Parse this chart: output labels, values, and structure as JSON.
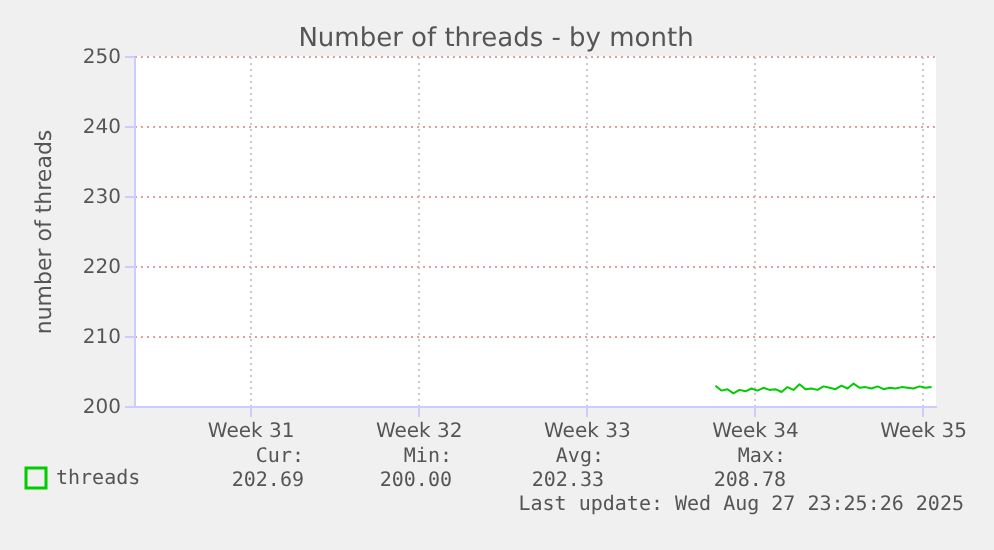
{
  "chart_data": {
    "type": "line",
    "title": "Number of threads - by month",
    "ylabel": "number of threads",
    "xlim": [
      "2025-07-25T14:00",
      "2025-08-27T23:25"
    ],
    "xticks": [
      {
        "value": "2025-07-30T10:00",
        "label": "Week 31"
      },
      {
        "value": "2025-08-06T10:00",
        "label": "Week 32"
      },
      {
        "value": "2025-08-13T10:00",
        "label": "Week 33"
      },
      {
        "value": "2025-08-20T10:00",
        "label": "Week 34"
      },
      {
        "value": "2025-08-27T10:00",
        "label": "Week 35"
      }
    ],
    "ylim": [
      200,
      250
    ],
    "yticks": [
      200,
      210,
      220,
      230,
      240,
      250
    ],
    "grid": true,
    "legend": "bottom left",
    "line_style": "solid",
    "marker": "none",
    "series": [
      {
        "name": "threads",
        "color": "#00cc00",
        "x": [
          "2025-08-18T19:00",
          "2025-08-19T01:00",
          "2025-08-19T07:00",
          "2025-08-19T13:00",
          "2025-08-19T19:00",
          "2025-08-20T01:00",
          "2025-08-20T07:00",
          "2025-08-20T13:00",
          "2025-08-20T19:00",
          "2025-08-21T01:00",
          "2025-08-21T07:00",
          "2025-08-21T13:00",
          "2025-08-21T19:00",
          "2025-08-22T01:00",
          "2025-08-22T07:00",
          "2025-08-22T13:00",
          "2025-08-22T19:00",
          "2025-08-23T01:00",
          "2025-08-23T07:00",
          "2025-08-23T13:00",
          "2025-08-23T19:00",
          "2025-08-24T01:00",
          "2025-08-24T07:00",
          "2025-08-24T13:00",
          "2025-08-24T19:00",
          "2025-08-25T01:00",
          "2025-08-25T07:00",
          "2025-08-25T13:00",
          "2025-08-25T19:00",
          "2025-08-26T01:00",
          "2025-08-26T07:00",
          "2025-08-26T13:00",
          "2025-08-26T19:00",
          "2025-08-27T01:00",
          "2025-08-27T07:00",
          "2025-08-27T13:00",
          "2025-08-27T19:00"
        ],
        "values": [
          202.9,
          202.2,
          202.4,
          201.8,
          202.3,
          202.1,
          202.5,
          202.2,
          202.6,
          202.3,
          202.4,
          202.0,
          202.7,
          202.3,
          203.1,
          202.4,
          202.5,
          202.3,
          202.8,
          202.6,
          202.4,
          202.9,
          202.5,
          203.2,
          202.6,
          202.7,
          202.5,
          202.8,
          202.4,
          202.6,
          202.5,
          202.7,
          202.6,
          202.5,
          202.8,
          202.6,
          202.7
        ]
      }
    ],
    "annotations": [
      "Cur:",
      "202.69",
      "Min:",
      "200.00",
      "Avg:",
      "202.33",
      "Max:",
      "208.78",
      "Last update: Wed Aug 27 23:25:26 2025"
    ]
  }
}
